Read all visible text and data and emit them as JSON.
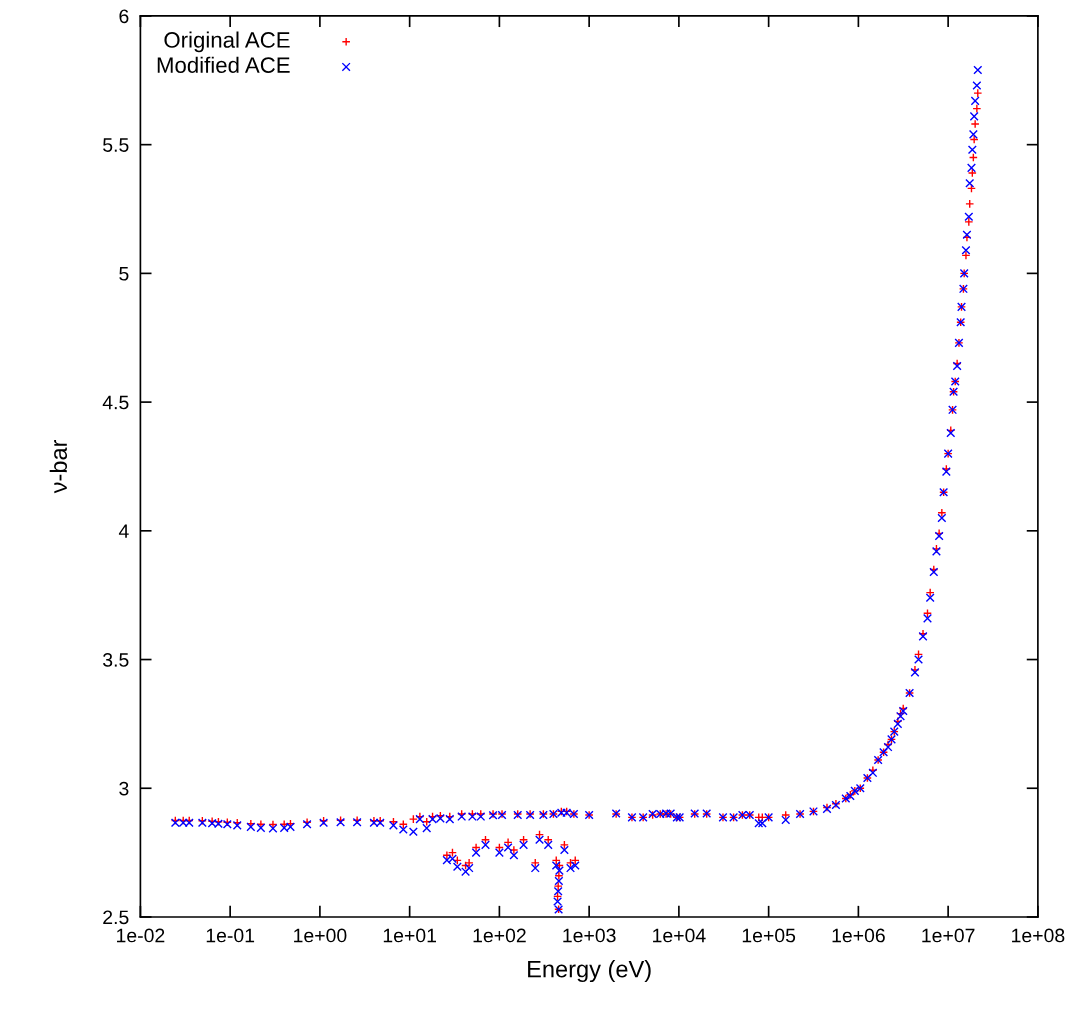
{
  "chart_data": {
    "type": "scatter",
    "xlabel": "Energy (eV)",
    "ylabel": "ν-bar",
    "log": "x",
    "grid": false,
    "legend": "top left",
    "xlim": [
      0.01,
      100000000
    ],
    "ylim": [
      2.5,
      6
    ],
    "xticks": [
      {
        "value": 0.01,
        "label": "1e-02"
      },
      {
        "value": 0.1,
        "label": "1e-01"
      },
      {
        "value": 1,
        "label": "1e+00"
      },
      {
        "value": 10,
        "label": "1e+01"
      },
      {
        "value": 100,
        "label": "1e+02"
      },
      {
        "value": 1000,
        "label": "1e+03"
      },
      {
        "value": 10000,
        "label": "1e+04"
      },
      {
        "value": 100000,
        "label": "1e+05"
      },
      {
        "value": 1000000,
        "label": "1e+06"
      },
      {
        "value": 10000000,
        "label": "1e+07"
      },
      {
        "value": 100000000,
        "label": "1e+08"
      }
    ],
    "yticks": [
      2.5,
      3,
      3.5,
      4,
      4.5,
      5,
      5.5,
      6
    ],
    "series": [
      {
        "name": "Original ACE",
        "color": "#ff0000",
        "marker": "plus",
        "x": [
          0.0245,
          0.03,
          0.035,
          0.049,
          0.063,
          0.074,
          0.093,
          0.12,
          0.17,
          0.22,
          0.3,
          0.4,
          0.47,
          0.72,
          1.1,
          1.7,
          2.6,
          4.0,
          4.7,
          6.6,
          8.5,
          11,
          13,
          15.5,
          18,
          22,
          26,
          28,
          30,
          34,
          38,
          42,
          46,
          50,
          55,
          62,
          70,
          85,
          100,
          107,
          125,
          145,
          160,
          186,
          220,
          251,
          280,
          309,
          350,
          400,
          430,
          445,
          452,
          457,
          460,
          466,
          490,
          530,
          562,
          620,
          676,
          700,
          1000,
          2000,
          3000,
          4000,
          5100,
          6200,
          7200,
          8100,
          9500,
          10200,
          15000,
          20400,
          31000,
          40700,
          51000,
          61600,
          77600,
          85000,
          100000,
          155000,
          224000,
          316000,
          447000,
          562000,
          724000,
          813000,
          912000,
          1050000,
          1260000,
          1450000,
          1660000,
          1910000,
          2140000,
          2340000,
          2510000,
          2750000,
          2950000,
          3160000,
          3720000,
          4270000,
          4680000,
          5250000,
          5890000,
          6310000,
          6920000,
          7410000,
          7940000,
          8510000,
          8910000,
          9550000,
          10000000,
          10700000,
          11200000,
          11500000,
          12000000,
          12600000,
          13200000,
          13800000,
          14100000,
          14800000,
          15100000,
          15800000,
          16200000,
          17000000,
          17400000,
          18200000,
          18600000,
          19100000,
          19500000,
          20000000,
          20900000,
          21400000
        ],
        "values": [
          2.875,
          2.875,
          2.875,
          2.874,
          2.872,
          2.87,
          2.868,
          2.866,
          2.862,
          2.86,
          2.859,
          2.86,
          2.862,
          2.868,
          2.874,
          2.876,
          2.876,
          2.874,
          2.874,
          2.87,
          2.86,
          2.88,
          2.89,
          2.87,
          2.89,
          2.893,
          2.74,
          2.89,
          2.75,
          2.72,
          2.9,
          2.7,
          2.71,
          2.9,
          2.77,
          2.9,
          2.8,
          2.9,
          2.77,
          2.9,
          2.79,
          2.76,
          2.9,
          2.8,
          2.9,
          2.71,
          2.82,
          2.9,
          2.8,
          2.9,
          2.72,
          2.58,
          2.62,
          2.53,
          2.66,
          2.7,
          2.91,
          2.78,
          2.91,
          2.71,
          2.9,
          2.72,
          2.896,
          2.9,
          2.887,
          2.887,
          2.896,
          2.9,
          2.9,
          2.9,
          2.887,
          2.887,
          2.9,
          2.9,
          2.887,
          2.887,
          2.896,
          2.896,
          2.887,
          2.887,
          2.887,
          2.896,
          2.9,
          2.91,
          2.925,
          2.94,
          2.96,
          2.975,
          2.99,
          3.0,
          3.04,
          3.07,
          3.11,
          3.14,
          3.17,
          3.19,
          3.22,
          3.26,
          3.29,
          3.31,
          3.37,
          3.46,
          3.52,
          3.6,
          3.68,
          3.76,
          3.85,
          3.93,
          3.99,
          4.07,
          4.15,
          4.24,
          4.3,
          4.39,
          4.47,
          4.54,
          4.58,
          4.65,
          4.73,
          4.81,
          4.87,
          4.94,
          5.0,
          5.07,
          5.14,
          5.2,
          5.27,
          5.33,
          5.39,
          5.45,
          5.52,
          5.58,
          5.64,
          5.7
        ]
      },
      {
        "name": "Modified ACE",
        "color": "#0000ff",
        "marker": "cross",
        "x": [
          0.0245,
          0.03,
          0.035,
          0.049,
          0.063,
          0.074,
          0.093,
          0.12,
          0.17,
          0.22,
          0.3,
          0.4,
          0.47,
          0.72,
          1.1,
          1.7,
          2.6,
          4.0,
          4.7,
          6.6,
          8.5,
          11,
          13,
          15.5,
          18,
          22,
          26,
          28,
          30,
          34,
          38,
          42,
          46,
          50,
          55,
          62,
          70,
          85,
          100,
          107,
          125,
          145,
          160,
          186,
          220,
          251,
          280,
          309,
          350,
          400,
          430,
          445,
          452,
          457,
          460,
          466,
          490,
          530,
          562,
          620,
          676,
          700,
          1000,
          2000,
          3000,
          4000,
          5100,
          6200,
          7200,
          8100,
          9500,
          10200,
          15000,
          20400,
          31000,
          40700,
          51000,
          61600,
          77600,
          85000,
          100000,
          155000,
          224000,
          316000,
          447000,
          562000,
          724000,
          813000,
          912000,
          1050000,
          1260000,
          1450000,
          1660000,
          1910000,
          2140000,
          2340000,
          2510000,
          2750000,
          2950000,
          3160000,
          3720000,
          4270000,
          4680000,
          5250000,
          5890000,
          6310000,
          6920000,
          7410000,
          7940000,
          8510000,
          8910000,
          9550000,
          10000000,
          10700000,
          11200000,
          11500000,
          12000000,
          12600000,
          13200000,
          13800000,
          14100000,
          14800000,
          15100000,
          15800000,
          16200000,
          17000000,
          17400000,
          18200000,
          18600000,
          19100000,
          19500000,
          20000000,
          20900000,
          21400000
        ],
        "values": [
          2.866,
          2.866,
          2.866,
          2.866,
          2.864,
          2.862,
          2.86,
          2.856,
          2.85,
          2.846,
          2.844,
          2.846,
          2.85,
          2.86,
          2.866,
          2.868,
          2.868,
          2.866,
          2.866,
          2.856,
          2.84,
          2.831,
          2.88,
          2.845,
          2.88,
          2.883,
          2.721,
          2.88,
          2.726,
          2.695,
          2.89,
          2.676,
          2.69,
          2.89,
          2.75,
          2.89,
          2.78,
          2.895,
          2.75,
          2.896,
          2.77,
          2.74,
          2.896,
          2.78,
          2.896,
          2.69,
          2.8,
          2.896,
          2.78,
          2.9,
          2.7,
          2.56,
          2.6,
          2.529,
          2.64,
          2.68,
          2.905,
          2.76,
          2.905,
          2.69,
          2.9,
          2.7,
          2.896,
          2.902,
          2.887,
          2.887,
          2.9,
          2.9,
          2.902,
          2.902,
          2.887,
          2.887,
          2.902,
          2.902,
          2.887,
          2.887,
          2.896,
          2.896,
          2.864,
          2.864,
          2.887,
          2.877,
          2.9,
          2.91,
          2.92,
          2.935,
          2.96,
          2.97,
          2.99,
          3.0,
          3.04,
          3.06,
          3.11,
          3.14,
          3.16,
          3.19,
          3.22,
          3.25,
          3.28,
          3.3,
          3.37,
          3.45,
          3.5,
          3.59,
          3.66,
          3.74,
          3.84,
          3.92,
          3.98,
          4.05,
          4.15,
          4.23,
          4.3,
          4.38,
          4.47,
          4.54,
          4.58,
          4.64,
          4.73,
          4.81,
          4.87,
          4.94,
          5.0,
          5.09,
          5.15,
          5.22,
          5.35,
          5.41,
          5.48,
          5.54,
          5.61,
          5.67,
          5.73,
          5.79
        ]
      }
    ]
  }
}
